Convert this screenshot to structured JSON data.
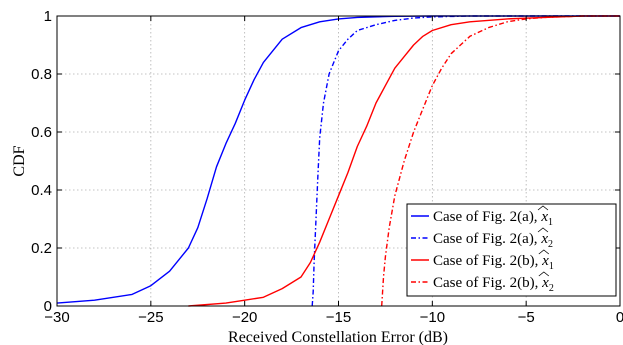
{
  "chart_data": {
    "type": "line",
    "title": "",
    "xlabel": "Received Constellation Error (dB)",
    "ylabel": "CDF",
    "xlim": [
      -30,
      0
    ],
    "ylim": [
      0,
      1
    ],
    "xticks": [
      -30,
      -25,
      -20,
      -15,
      -10,
      -5,
      0
    ],
    "xtick_labels": [
      "−30",
      "−25",
      "−20",
      "−15",
      "−10",
      "−5",
      "0"
    ],
    "yticks": [
      0,
      0.2,
      0.4,
      0.6,
      0.8,
      1
    ],
    "ytick_labels": [
      "0",
      "0.2",
      "0.4",
      "0.6",
      "0.8",
      "1"
    ],
    "grid": true,
    "legend_position": "bottom-right",
    "series": [
      {
        "name": "Case of Fig. 2(a), x̂₁",
        "legend_prefix": "Case of Fig. 2(a), ",
        "legend_var": "x",
        "legend_sub": "1",
        "color": "#0000ff",
        "style": "solid",
        "x": [
          -30,
          -28,
          -26,
          -25,
          -24,
          -23,
          -22.5,
          -22,
          -21.5,
          -21,
          -20.5,
          -20,
          -19.5,
          -19,
          -18.5,
          -18,
          -17,
          -16,
          -15,
          -14,
          -12,
          -10,
          -5,
          0
        ],
        "y": [
          0.01,
          0.02,
          0.04,
          0.07,
          0.12,
          0.2,
          0.27,
          0.37,
          0.48,
          0.56,
          0.63,
          0.71,
          0.78,
          0.84,
          0.88,
          0.92,
          0.96,
          0.98,
          0.99,
          0.995,
          0.999,
          1,
          1,
          1
        ]
      },
      {
        "name": "Case of Fig. 2(a), x̂₂",
        "legend_prefix": "Case of Fig. 2(a), ",
        "legend_var": "x",
        "legend_sub": "2",
        "color": "#0000ff",
        "style": "dashdot",
        "x": [
          -16.4,
          -16.35,
          -16.3,
          -16.2,
          -16.1,
          -16.0,
          -15.8,
          -15.5,
          -15.0,
          -14.5,
          -14.0,
          -13.0,
          -12.0,
          -11.0,
          -10.0,
          -8.0,
          -5.0,
          0
        ],
        "y": [
          0,
          0.05,
          0.15,
          0.3,
          0.45,
          0.58,
          0.7,
          0.8,
          0.88,
          0.92,
          0.95,
          0.97,
          0.985,
          0.993,
          0.997,
          1,
          1,
          1
        ]
      },
      {
        "name": "Case of Fig. 2(b), x̂₁",
        "legend_prefix": "Case of Fig. 2(b), ",
        "legend_var": "x",
        "legend_sub": "1",
        "color": "#ff0000",
        "style": "solid",
        "x": [
          -23,
          -21,
          -20,
          -19,
          -18,
          -17,
          -16.5,
          -16,
          -15.5,
          -15,
          -14.5,
          -14,
          -13.5,
          -13,
          -12.5,
          -12,
          -11.5,
          -11,
          -10.5,
          -10,
          -9,
          -8,
          -6,
          -4,
          -2,
          0
        ],
        "y": [
          0,
          0.01,
          0.02,
          0.03,
          0.06,
          0.1,
          0.15,
          0.22,
          0.3,
          0.38,
          0.46,
          0.55,
          0.62,
          0.7,
          0.76,
          0.82,
          0.86,
          0.9,
          0.93,
          0.95,
          0.97,
          0.98,
          0.99,
          0.995,
          1,
          1
        ]
      },
      {
        "name": "Case of Fig. 2(b), x̂₂",
        "legend_prefix": "Case of Fig. 2(b), ",
        "legend_var": "x",
        "legend_sub": "2",
        "color": "#ff0000",
        "style": "dashdot",
        "x": [
          -12.7,
          -12.65,
          -12.6,
          -12.5,
          -12.3,
          -12,
          -11.5,
          -11,
          -10.5,
          -10,
          -9.5,
          -9,
          -8,
          -7,
          -6,
          -5,
          -4,
          -2,
          0
        ],
        "y": [
          0,
          0.05,
          0.1,
          0.17,
          0.27,
          0.38,
          0.5,
          0.6,
          0.68,
          0.76,
          0.82,
          0.87,
          0.93,
          0.96,
          0.98,
          0.99,
          0.995,
          1,
          1
        ]
      }
    ]
  }
}
